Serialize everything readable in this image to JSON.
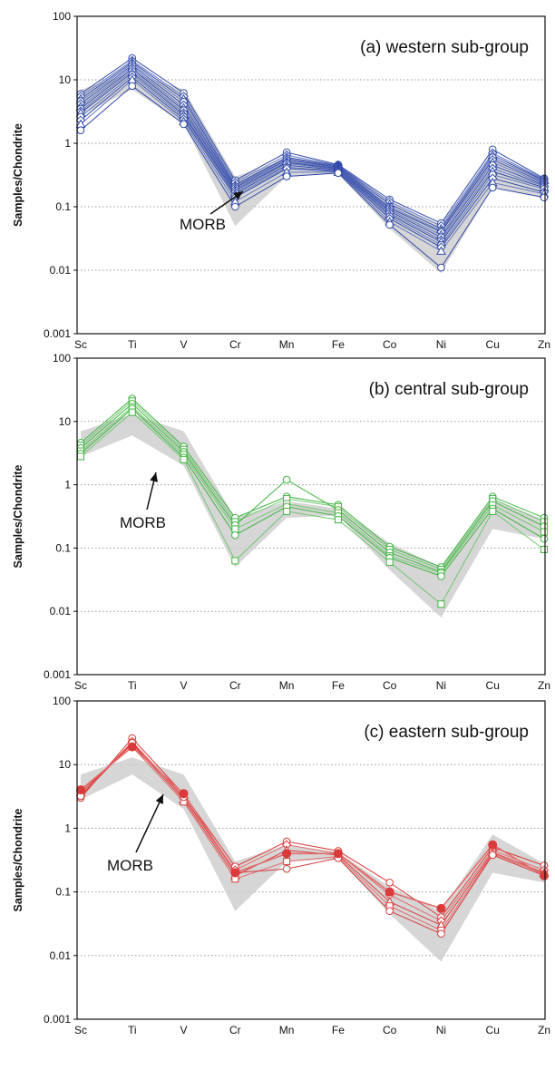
{
  "page": {
    "background": "#ffffff"
  },
  "chart_data": [
    {
      "type": "line",
      "title": "(a) western sub-group",
      "ylabel": "Samples/Chondrite",
      "xlabel": "",
      "yscale": "log",
      "ylim": [
        0.001,
        100
      ],
      "yticks": [
        "0.001",
        "0.01",
        "0.1",
        "1",
        "10",
        "100"
      ],
      "categories": [
        "Sc",
        "Ti",
        "V",
        "Cr",
        "Mn",
        "Fe",
        "Co",
        "Ni",
        "Cu",
        "Zn"
      ],
      "grid": "dotted horizontal",
      "color": "#2e47a8",
      "markers": [
        "circle",
        "diamond",
        "triangle"
      ],
      "annotation": "MORB",
      "morb_band": {
        "low": [
          2.8,
          7.0,
          2.0,
          0.05,
          0.3,
          0.33,
          0.045,
          0.009,
          0.2,
          0.14
        ],
        "high": [
          7.0,
          13.0,
          7.0,
          0.3,
          0.55,
          0.42,
          0.12,
          0.05,
          0.6,
          0.28
        ]
      },
      "series": [
        {
          "values": [
            6.0,
            22.0,
            6.2,
            0.26,
            0.72,
            0.46,
            0.13,
            0.055,
            0.8,
            0.28
          ]
        },
        {
          "values": [
            5.5,
            20.0,
            5.5,
            0.24,
            0.65,
            0.45,
            0.12,
            0.05,
            0.7,
            0.27
          ]
        },
        {
          "values": [
            5.0,
            19.0,
            5.0,
            0.22,
            0.6,
            0.44,
            0.11,
            0.045,
            0.65,
            0.26
          ]
        },
        {
          "values": [
            4.6,
            18.0,
            4.5,
            0.21,
            0.58,
            0.43,
            0.1,
            0.042,
            0.6,
            0.25
          ]
        },
        {
          "values": [
            4.2,
            17.0,
            4.0,
            0.2,
            0.55,
            0.42,
            0.095,
            0.04,
            0.55,
            0.24
          ]
        },
        {
          "values": [
            3.8,
            16.0,
            3.6,
            0.19,
            0.52,
            0.41,
            0.09,
            0.036,
            0.5,
            0.23
          ]
        },
        {
          "values": [
            3.5,
            15.0,
            3.3,
            0.18,
            0.5,
            0.4,
            0.085,
            0.033,
            0.45,
            0.22
          ]
        },
        {
          "values": [
            3.2,
            14.0,
            3.0,
            0.17,
            0.48,
            0.39,
            0.08,
            0.03,
            0.4,
            0.21
          ]
        },
        {
          "values": [
            3.0,
            13.0,
            2.8,
            0.16,
            0.45,
            0.38,
            0.075,
            0.028,
            0.36,
            0.2
          ]
        },
        {
          "values": [
            2.6,
            12.0,
            2.6,
            0.15,
            0.42,
            0.37,
            0.07,
            0.025,
            0.32,
            0.19
          ]
        },
        {
          "values": [
            2.3,
            11.0,
            2.4,
            0.14,
            0.4,
            0.36,
            0.065,
            0.023,
            0.28,
            0.17
          ]
        },
        {
          "values": [
            2.0,
            10.0,
            2.2,
            0.12,
            0.35,
            0.35,
            0.058,
            0.02,
            0.24,
            0.16
          ]
        },
        {
          "values": [
            1.6,
            8.0,
            2.0,
            0.1,
            0.3,
            0.34,
            0.052,
            0.011,
            0.2,
            0.14
          ]
        }
      ]
    },
    {
      "type": "line",
      "title": "(b) central sub-group",
      "ylabel": "Samples/Chondrite",
      "xlabel": "",
      "yscale": "log",
      "ylim": [
        0.001,
        100
      ],
      "yticks": [
        "0.001",
        "0.01",
        "0.1",
        "1",
        "10",
        "100"
      ],
      "categories": [
        "Sc",
        "Ti",
        "V",
        "Cr",
        "Mn",
        "Fe",
        "Co",
        "Ni",
        "Cu",
        "Zn"
      ],
      "grid": "dotted horizontal",
      "color": "#3fb43f",
      "markers": [
        "circle",
        "square"
      ],
      "annotation": "MORB",
      "morb_band": {
        "low": [
          2.8,
          6.0,
          2.0,
          0.05,
          0.3,
          0.33,
          0.045,
          0.008,
          0.2,
          0.14
        ],
        "high": [
          7.0,
          13.0,
          7.0,
          0.3,
          0.55,
          0.42,
          0.12,
          0.05,
          0.6,
          0.28
        ]
      },
      "series": [
        {
          "values": [
            4.6,
            23.0,
            4.0,
            0.3,
            0.65,
            0.48,
            0.105,
            0.05,
            0.65,
            0.3
          ]
        },
        {
          "values": [
            4.2,
            21.0,
            3.6,
            0.26,
            0.6,
            0.45,
            0.095,
            0.046,
            0.6,
            0.26
          ]
        },
        {
          "values": [
            3.8,
            19.0,
            3.3,
            0.23,
            1.2,
            0.4,
            0.085,
            0.042,
            0.55,
            0.22
          ]
        },
        {
          "values": [
            3.4,
            17.0,
            3.0,
            0.2,
            0.5,
            0.36,
            0.075,
            0.04,
            0.48,
            0.18
          ]
        },
        {
          "values": [
            3.1,
            16.0,
            2.7,
            0.16,
            0.45,
            0.32,
            0.07,
            0.036,
            0.42,
            0.14
          ]
        },
        {
          "values": [
            2.8,
            14.0,
            2.5,
            0.063,
            0.38,
            0.28,
            0.06,
            0.013,
            0.38,
            0.095
          ]
        }
      ]
    },
    {
      "type": "line",
      "title": "(c) eastern sub-group",
      "ylabel": "Samples/Chondrite",
      "xlabel": "",
      "yscale": "log",
      "ylim": [
        0.001,
        100
      ],
      "yticks": [
        "0.001",
        "0.01",
        "0.1",
        "1",
        "10",
        "100"
      ],
      "categories": [
        "Sc",
        "Ti",
        "V",
        "Cr",
        "Mn",
        "Fe",
        "Co",
        "Ni",
        "Cu",
        "Zn"
      ],
      "grid": "dotted horizontal",
      "color": "#d93a3a",
      "markers": [
        "circle",
        "diamond",
        "triangle",
        "square",
        "filled-circle"
      ],
      "annotation": "MORB",
      "morb_band": {
        "low": [
          2.8,
          7.0,
          2.0,
          0.05,
          0.3,
          0.33,
          0.045,
          0.008,
          0.2,
          0.14
        ],
        "high": [
          7.0,
          13.0,
          7.0,
          0.3,
          0.55,
          0.42,
          0.12,
          0.05,
          0.8,
          0.28
        ]
      },
      "series": [
        {
          "values": [
            3.0,
            26.0,
            3.4,
            0.25,
            0.62,
            0.44,
            0.14,
            0.04,
            0.5,
            0.26
          ]
        },
        {
          "values": [
            3.3,
            23.0,
            3.0,
            0.22,
            0.55,
            0.4,
            0.09,
            0.035,
            0.45,
            0.22
          ]
        },
        {
          "values": [
            3.6,
            21.0,
            2.8,
            0.18,
            0.45,
            0.38,
            0.07,
            0.03,
            0.42,
            0.2
          ]
        },
        {
          "values": [
            4.0,
            19.0,
            2.6,
            0.16,
            0.3,
            0.36,
            0.06,
            0.025,
            0.4,
            0.19
          ]
        },
        {
          "values": [
            3.2,
            22.0,
            3.1,
            0.2,
            0.23,
            0.34,
            0.05,
            0.022,
            0.38,
            0.18
          ]
        },
        {
          "values": [
            4.0,
            19.0,
            3.5,
            0.2,
            0.4,
            0.4,
            0.1,
            0.055,
            0.55,
            0.18
          ],
          "filled": true
        }
      ]
    }
  ]
}
